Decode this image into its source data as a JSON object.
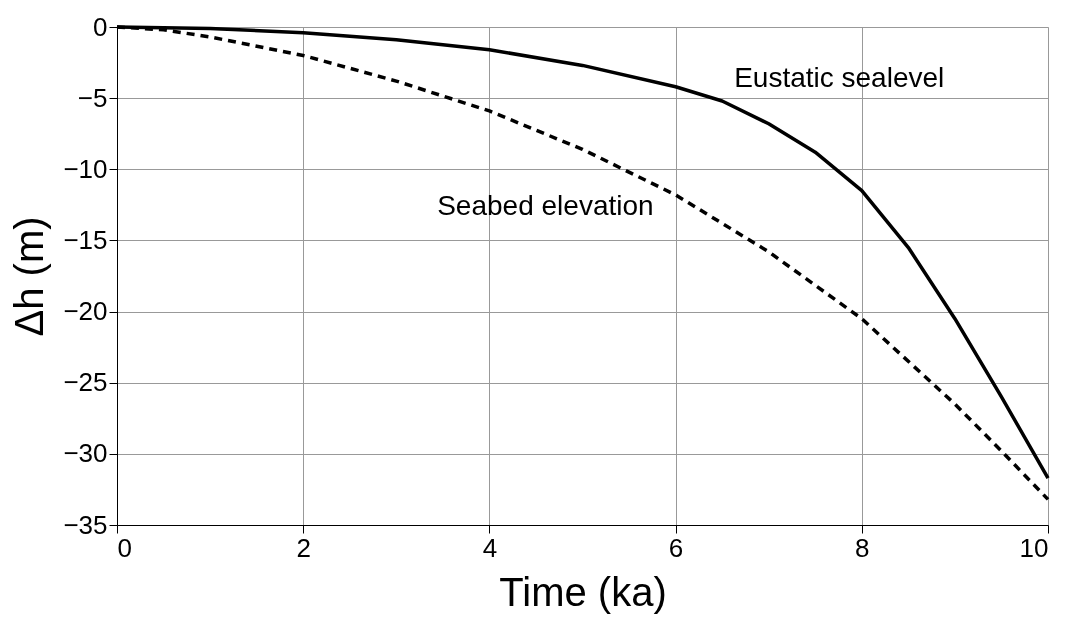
{
  "chart_data": {
    "type": "line",
    "xlabel": "Time (ka)",
    "ylabel": "Δh (m)",
    "xlim": [
      0,
      10
    ],
    "xticks": [
      0,
      2,
      4,
      6,
      8,
      10
    ],
    "ylim": [
      -35,
      0
    ],
    "yticks": [
      -35,
      -30,
      -25,
      -20,
      -15,
      -10,
      -5,
      0
    ],
    "grid": true,
    "marker": "none",
    "series": [
      {
        "name": "Eustatic sealevel",
        "color": "#000000",
        "line_style": "solid",
        "x": [
          0,
          1,
          2,
          3,
          4,
          5,
          6,
          6.5,
          7,
          7.5,
          8,
          8.5,
          9,
          9.5,
          10
        ],
        "values": [
          0,
          -0.1,
          -0.4,
          -0.9,
          -1.6,
          -2.7,
          -4.2,
          -5.2,
          -6.8,
          -8.8,
          -11.5,
          -15.5,
          -20.5,
          -26,
          -31.7
        ]
      },
      {
        "name": "Seabed elevation",
        "color": "#000000",
        "line_style": "dashed",
        "x": [
          0,
          0.5,
          1,
          2,
          3,
          4,
          5,
          6,
          7,
          8,
          9,
          9.5,
          10
        ],
        "values": [
          0,
          -0.2,
          -0.7,
          -2,
          -3.8,
          -5.9,
          -8.6,
          -11.8,
          -15.8,
          -20.5,
          -26.5,
          -29.8,
          -33.2
        ]
      }
    ]
  }
}
